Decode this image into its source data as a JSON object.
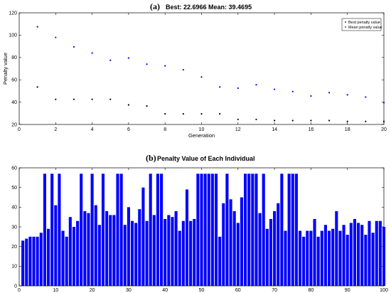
{
  "chart_data": [
    {
      "panel": "(a)",
      "type": "scatter",
      "title": "Best: 22.6966 Mean: 39.4695",
      "xlabel": "Generation",
      "ylabel": "Penalty value",
      "xlim": [
        0,
        20
      ],
      "ylim": [
        20,
        120
      ],
      "xticks": [
        0,
        2,
        4,
        6,
        8,
        10,
        12,
        14,
        16,
        18,
        20
      ],
      "yticks": [
        20,
        40,
        60,
        80,
        100,
        120
      ],
      "legend_position": "top-right",
      "grid": false,
      "series": [
        {
          "name": "Best penalty value",
          "color": "#000000",
          "x": [
            1,
            2,
            3,
            4,
            5,
            6,
            7,
            8,
            9,
            10,
            11,
            12,
            13,
            14,
            15,
            16,
            17,
            18,
            19,
            20
          ],
          "y": [
            53.5,
            42.5,
            42.5,
            42.5,
            42.5,
            37.5,
            36.5,
            29.5,
            29.5,
            29.5,
            29.5,
            24.5,
            24.5,
            23.5,
            23.5,
            23.5,
            23.5,
            22.7,
            22.7,
            22.7
          ]
        },
        {
          "name": "Mean penalty value",
          "color": "#0000ff",
          "x": [
            1,
            2,
            3,
            4,
            5,
            6,
            7,
            8,
            9,
            10,
            11,
            12,
            13,
            14,
            15,
            16,
            17,
            18,
            19,
            20
          ],
          "y": [
            107.5,
            98,
            89.5,
            84,
            77.5,
            79.5,
            74,
            72.5,
            69,
            62.5,
            53.5,
            52.5,
            55.5,
            51.5,
            49.5,
            45.5,
            48.5,
            46.5,
            44.5,
            39.5
          ]
        }
      ]
    },
    {
      "panel": "(b)",
      "type": "bar",
      "title": "Penalty Value of Each Individual",
      "xlim": [
        0,
        100
      ],
      "ylim": [
        0,
        60
      ],
      "xticks": [
        0,
        10,
        20,
        30,
        40,
        50,
        60,
        70,
        80,
        90,
        100
      ],
      "yticks": [
        0,
        10,
        20,
        30,
        40,
        50,
        60
      ],
      "grid": false,
      "color": "#0000ff",
      "categories": [
        1,
        2,
        3,
        4,
        5,
        6,
        7,
        8,
        9,
        10,
        11,
        12,
        13,
        14,
        15,
        16,
        17,
        18,
        19,
        20,
        21,
        22,
        23,
        24,
        25,
        26,
        27,
        28,
        29,
        30,
        31,
        32,
        33,
        34,
        35,
        36,
        37,
        38,
        39,
        40,
        41,
        42,
        43,
        44,
        45,
        46,
        47,
        48,
        49,
        50,
        51,
        52,
        53,
        54,
        55,
        56,
        57,
        58,
        59,
        60,
        61,
        62,
        63,
        64,
        65,
        66,
        67,
        68,
        69,
        70,
        71,
        72,
        73,
        74,
        75,
        76,
        77,
        78,
        79,
        80,
        81,
        82,
        83,
        84,
        85,
        86,
        87,
        88,
        89,
        90,
        91,
        92,
        93,
        94,
        95,
        96,
        97,
        98,
        99,
        100
      ],
      "values": [
        23,
        24,
        25,
        25,
        25,
        27,
        57,
        29,
        57,
        41,
        57,
        28,
        25,
        35,
        30,
        33,
        57,
        38,
        37,
        57,
        41,
        31,
        57,
        38,
        36,
        36,
        57,
        57,
        31,
        40,
        33,
        32,
        39,
        50,
        33,
        57,
        36,
        57,
        57,
        34,
        36,
        35,
        38,
        28,
        33,
        49,
        33,
        34,
        57,
        57,
        57,
        57,
        57,
        57,
        25,
        42,
        57,
        44,
        38,
        32,
        45,
        57,
        57,
        57,
        57,
        37,
        57,
        29,
        34,
        38,
        42,
        57,
        28,
        57,
        57,
        57,
        28,
        25,
        28,
        28,
        34,
        25,
        28,
        31,
        28,
        29,
        38,
        28,
        31,
        26,
        32,
        34,
        32,
        31,
        26,
        33,
        27,
        33,
        33,
        30
      ]
    }
  ]
}
